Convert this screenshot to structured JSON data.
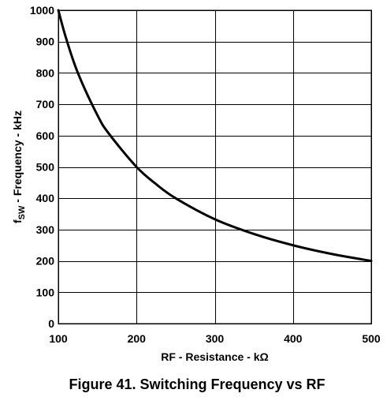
{
  "chart_data": {
    "type": "line",
    "caption": "Figure 41.  Switching Frequency vs RF",
    "xlabel": "RF - Resistance - kΩ",
    "ylabel": {
      "prefix": "f",
      "subscript": "SW",
      "suffix": " - Frequency - kHz"
    },
    "xlim": [
      100,
      500
    ],
    "ylim": [
      0,
      1000
    ],
    "x_ticks": [
      100,
      200,
      300,
      400,
      500
    ],
    "y_ticks": [
      0,
      100,
      200,
      300,
      400,
      500,
      600,
      700,
      800,
      900,
      1000
    ],
    "grid": true,
    "series": [
      {
        "x": [
          100,
          110,
          125,
          150,
          165,
          200,
          225,
          250,
          300,
          350,
          400,
          450,
          500
        ],
        "y": [
          1000,
          910,
          800,
          665,
          605,
          500,
          445,
          400,
          333,
          286,
          250,
          222,
          200
        ],
        "color": "#000000"
      }
    ]
  }
}
